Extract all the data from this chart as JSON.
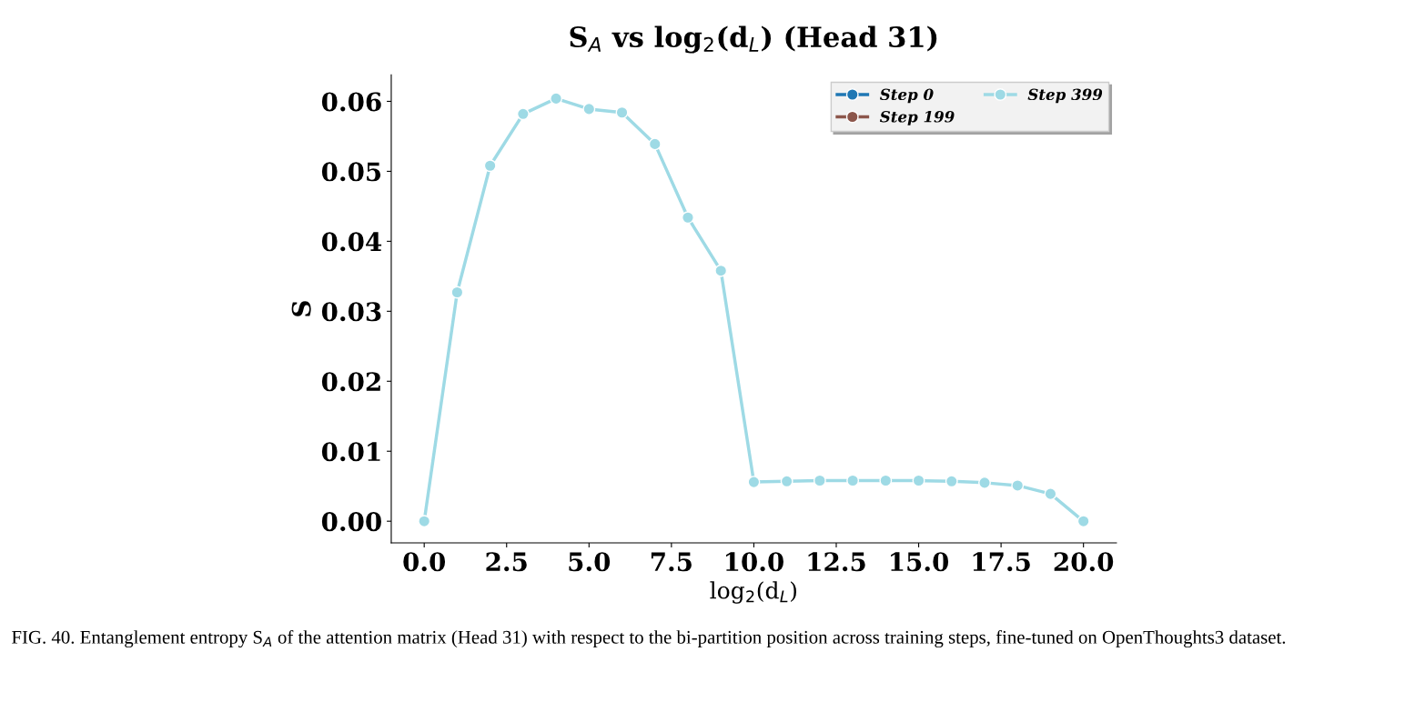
{
  "chart_data": {
    "type": "line",
    "title": "S$_{A}$ vs log$_{2}$(d$_{L}$) (Head 31)",
    "xlabel": "log$_{2}$(d$_{L}$)",
    "ylabel": "S",
    "x": [
      0,
      1,
      2,
      3,
      4,
      5,
      6,
      7,
      8,
      9,
      10,
      11,
      12,
      13,
      14,
      15,
      16,
      17,
      18,
      19,
      20
    ],
    "series": [
      {
        "name": "Step 0",
        "color": "#1f77b4",
        "values": [
          null,
          null,
          null,
          null,
          null,
          null,
          null,
          null,
          null,
          null,
          null,
          null,
          null,
          null,
          null,
          null,
          null,
          null,
          null,
          null,
          null
        ]
      },
      {
        "name": "Step 199",
        "color": "#8c564b",
        "values": [
          null,
          null,
          null,
          null,
          null,
          null,
          null,
          null,
          null,
          null,
          null,
          null,
          null,
          null,
          null,
          null,
          null,
          null,
          null,
          null,
          null
        ]
      },
      {
        "name": "Step 399",
        "color": "#9edae5",
        "values": [
          0.0,
          0.0327,
          0.0508,
          0.0582,
          0.0604,
          0.0589,
          0.0584,
          0.0539,
          0.0434,
          0.0358,
          0.0056,
          0.0057,
          0.0058,
          0.0058,
          0.0058,
          0.0058,
          0.0057,
          0.0055,
          0.0051,
          0.0039,
          0.0
        ]
      }
    ],
    "xlim": [
      -1,
      21
    ],
    "ylim": [
      -0.0031,
      0.0638
    ],
    "xticks": [
      {
        "value": 0,
        "label": "0.0"
      },
      {
        "value": 2.5,
        "label": "2.5"
      },
      {
        "value": 5,
        "label": "5.0"
      },
      {
        "value": 7.5,
        "label": "7.5"
      },
      {
        "value": 10,
        "label": "10.0"
      },
      {
        "value": 12.5,
        "label": "12.5"
      },
      {
        "value": 15,
        "label": "15.0"
      },
      {
        "value": 17.5,
        "label": "17.5"
      },
      {
        "value": 20,
        "label": "20.0"
      }
    ],
    "yticks": [
      {
        "value": 0,
        "label": "0.00"
      },
      {
        "value": 0.01,
        "label": "0.01"
      },
      {
        "value": 0.02,
        "label": "0.02"
      },
      {
        "value": 0.03,
        "label": "0.03"
      },
      {
        "value": 0.04,
        "label": "0.04"
      },
      {
        "value": 0.05,
        "label": "0.05"
      },
      {
        "value": 0.06,
        "label": "0.06"
      }
    ],
    "grid": false,
    "legend": "top right",
    "marker": "circle",
    "line_style": "solid",
    "annotations": [
      "FIG. 40. Entanglement entropy S$_{A}$ of the attention matrix (Head 31) with respect to the bi-partition position across training steps, fine-tuned on OpenThoughts3 dataset."
    ]
  }
}
